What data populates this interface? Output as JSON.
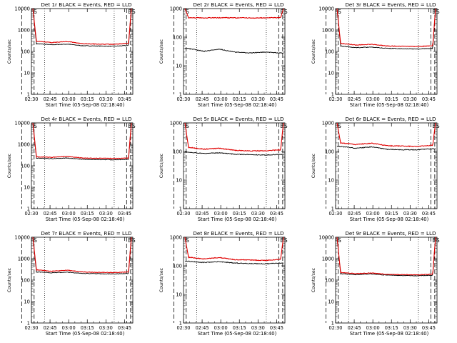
{
  "figure": {
    "chart_data": [
      {
        "type": "line",
        "title": "Det 1r BLACK = Events, RED = LLD",
        "xlabel": "Start Time (05-Sep-08 02:18:40)",
        "ylabel": "Counts/sec",
        "yscale": "log",
        "ylim": [
          1,
          10000
        ],
        "x_ticks": [
          "02:30",
          "02:45",
          "03:00",
          "03:15",
          "03:30",
          "03:45"
        ],
        "y_ticks": [
          "1",
          "10",
          "100",
          "1000",
          "10000"
        ],
        "markers": {
          "start": "S",
          "end": "E"
        },
        "series": [
          {
            "name": "Events",
            "color": "#000000",
            "levels": [
              230,
              205,
              220,
              185,
              180,
              175,
              190
            ],
            "ends": [
              10000,
              10000
            ]
          },
          {
            "name": "LLD",
            "color": "#e00000",
            "levels": [
              300,
              260,
              290,
              230,
              220,
              215,
              240
            ],
            "ends": [
              10000,
              10000
            ]
          }
        ]
      },
      {
        "type": "line",
        "title": "Det 2r BLACK = Events, RED = LLD",
        "xlabel": "Start Time (05-Sep-08 02:18:40)",
        "ylabel": "Counts/sec",
        "yscale": "log",
        "ylim": [
          1,
          1000
        ],
        "x_ticks": [
          "02:30",
          "02:45",
          "03:00",
          "03:15",
          "03:30",
          "03:45"
        ],
        "y_ticks": [
          "1",
          "10",
          "100",
          "1000"
        ],
        "markers": {
          "start": "S",
          "end": "E"
        },
        "series": [
          {
            "name": "Events",
            "color": "#000000",
            "levels": [
              40,
              32,
              38,
              30,
              28,
              30,
              28
            ],
            "ends": [
              null,
              null
            ]
          },
          {
            "name": "LLD",
            "color": "#e00000",
            "levels": [
              480,
              470,
              480,
              475,
              470,
              475,
              480
            ],
            "ends": [
              1000,
              1000
            ]
          }
        ]
      },
      {
        "type": "line",
        "title": "Det 3r BLACK = Events, RED = LLD",
        "xlabel": "Start Time (05-Sep-08 02:18:40)",
        "ylabel": "Counts/sec",
        "yscale": "log",
        "ylim": [
          1,
          10000
        ],
        "x_ticks": [
          "02:30",
          "02:45",
          "03:00",
          "03:15",
          "03:30",
          "03:45"
        ],
        "y_ticks": [
          "1",
          "10",
          "100",
          "1000",
          "10000"
        ],
        "markers": {
          "start": "S",
          "end": "E"
        },
        "series": [
          {
            "name": "Events",
            "color": "#000000",
            "levels": [
              180,
              150,
              160,
              140,
              135,
              130,
              140
            ],
            "ends": [
              10000,
              10000
            ]
          },
          {
            "name": "LLD",
            "color": "#e00000",
            "levels": [
              240,
              200,
              215,
              180,
              175,
              170,
              185
            ],
            "ends": [
              10000,
              10000
            ]
          }
        ]
      },
      {
        "type": "line",
        "title": "Det 4r BLACK = Events, RED = LLD",
        "xlabel": "Start Time (05-Sep-08 02:18:40)",
        "ylabel": "Counts/sec",
        "yscale": "log",
        "ylim": [
          1,
          10000
        ],
        "x_ticks": [
          "02:30",
          "02:45",
          "03:00",
          "03:15",
          "03:30",
          "03:45"
        ],
        "y_ticks": [
          "1",
          "10",
          "100",
          "1000",
          "10000"
        ],
        "markers": {
          "start": "S",
          "end": "E"
        },
        "series": [
          {
            "name": "Events",
            "color": "#000000",
            "levels": [
              230,
              215,
              230,
              200,
              195,
              190,
              200
            ],
            "ends": [
              10000,
              10000
            ]
          },
          {
            "name": "LLD",
            "color": "#e00000",
            "levels": [
              260,
              250,
              270,
              230,
              225,
              220,
              230
            ],
            "ends": [
              10000,
              10000
            ]
          }
        ]
      },
      {
        "type": "line",
        "title": "Det 5r BLACK = Events, RED = LLD",
        "xlabel": "Start Time (05-Sep-08 02:18:40)",
        "ylabel": "Counts/sec",
        "yscale": "log",
        "ylim": [
          1,
          1000
        ],
        "x_ticks": [
          "02:30",
          "02:45",
          "03:00",
          "03:15",
          "03:30",
          "03:45"
        ],
        "y_ticks": [
          "1",
          "10",
          "100",
          "1000"
        ],
        "markers": {
          "start": "S",
          "end": "E"
        },
        "series": [
          {
            "name": "Events",
            "color": "#000000",
            "levels": [
              95,
              85,
              90,
              80,
              78,
              75,
              80
            ],
            "ends": [
              null,
              null
            ]
          },
          {
            "name": "LLD",
            "color": "#e00000",
            "levels": [
              140,
              120,
              130,
              110,
              105,
              105,
              115
            ],
            "ends": [
              1000,
              1000
            ]
          }
        ]
      },
      {
        "type": "line",
        "title": "Det 6r BLACK = Events, RED = LLD",
        "xlabel": "Start Time (05-Sep-08 02:18:40)",
        "ylabel": "Counts/sec",
        "yscale": "log",
        "ylim": [
          1,
          1000
        ],
        "x_ticks": [
          "02:30",
          "02:45",
          "03:00",
          "03:15",
          "03:30",
          "03:45"
        ],
        "y_ticks": [
          "1",
          "10",
          "100",
          "1000"
        ],
        "markers": {
          "start": "S",
          "end": "E"
        },
        "series": [
          {
            "name": "Events",
            "color": "#000000",
            "levels": [
              150,
              130,
              145,
              120,
              115,
              115,
              125
            ],
            "ends": [
              null,
              null
            ]
          },
          {
            "name": "LLD",
            "color": "#e00000",
            "levels": [
              200,
              175,
              195,
              160,
              155,
              150,
              165
            ],
            "ends": [
              1000,
              1000
            ]
          }
        ]
      },
      {
        "type": "line",
        "title": "Det 7r BLACK = Events, RED = LLD",
        "xlabel": "Start Time (05-Sep-08 02:18:40)",
        "ylabel": "Counts/sec",
        "yscale": "log",
        "ylim": [
          1,
          10000
        ],
        "x_ticks": [
          "02:30",
          "02:45",
          "03:00",
          "03:15",
          "03:30",
          "03:45"
        ],
        "y_ticks": [
          "1",
          "10",
          "100",
          "1000",
          "10000"
        ],
        "markers": {
          "start": "S",
          "end": "E"
        },
        "series": [
          {
            "name": "Events",
            "color": "#000000",
            "levels": [
              240,
              220,
              235,
              205,
              200,
              195,
              205
            ],
            "ends": [
              10000,
              10000
            ]
          },
          {
            "name": "LLD",
            "color": "#e00000",
            "levels": [
              300,
              260,
              290,
              240,
              230,
              225,
              240
            ],
            "ends": [
              10000,
              10000
            ]
          }
        ]
      },
      {
        "type": "line",
        "title": "Det 8r BLACK = Events, RED = LLD",
        "xlabel": "Start Time (05-Sep-08 02:18:40)",
        "ylabel": "Counts/sec",
        "yscale": "log",
        "ylim": [
          1,
          1000
        ],
        "x_ticks": [
          "02:30",
          "02:45",
          "03:00",
          "03:15",
          "03:30",
          "03:45"
        ],
        "y_ticks": [
          "1",
          "10",
          "100",
          "1000"
        ],
        "markers": {
          "start": "S",
          "end": "E"
        },
        "series": [
          {
            "name": "Events",
            "color": "#000000",
            "levels": [
              145,
              130,
              140,
              125,
              120,
              118,
              125
            ],
            "ends": [
              null,
              null
            ]
          },
          {
            "name": "LLD",
            "color": "#e00000",
            "levels": [
              200,
              175,
              195,
              165,
              160,
              155,
              170
            ],
            "ends": [
              1000,
              1000
            ]
          }
        ]
      },
      {
        "type": "line",
        "title": "Det 9r BLACK = Events, RED = LLD",
        "xlabel": "Start Time (05-Sep-08 02:18:40)",
        "ylabel": "Counts/sec",
        "yscale": "log",
        "ylim": [
          1,
          10000
        ],
        "x_ticks": [
          "02:30",
          "02:45",
          "03:00",
          "03:15",
          "03:30",
          "03:45"
        ],
        "y_ticks": [
          "1",
          "10",
          "100",
          "1000",
          "10000"
        ],
        "markers": {
          "start": "S",
          "end": "E"
        },
        "series": [
          {
            "name": "Events",
            "color": "#000000",
            "levels": [
              200,
              180,
              195,
              170,
              165,
              160,
              170
            ],
            "ends": [
              10000,
              10000
            ]
          },
          {
            "name": "LLD",
            "color": "#e00000",
            "levels": [
              230,
              200,
              215,
              185,
              180,
              175,
              190
            ],
            "ends": [
              10000,
              10000
            ]
          }
        ]
      }
    ]
  }
}
